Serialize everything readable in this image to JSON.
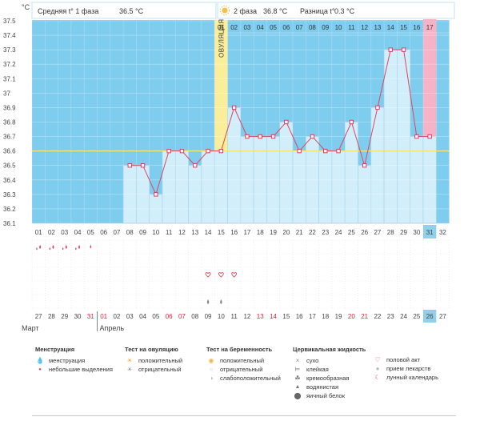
{
  "header": {
    "phase1_label": "Средняя t° 1 фаза",
    "phase1_value": "36.5 °C",
    "phase2_label": "2 фаза",
    "phase2_value": "36.8 °C",
    "diff_label": "Разница t°",
    "diff_value": "0.3 °C"
  },
  "colors": {
    "sky": "#7fcdee",
    "bar_fill": "#d2eefb",
    "bar_stroke": "#8ec9e6",
    "ovulation": "#fbee9a",
    "today": "#f7b3c5",
    "line": "#e0455e",
    "marker": "#d83d64",
    "coverline": "#f4e66e",
    "today_tile": "#8fd0ec",
    "weekend": "#d8243a"
  },
  "chart_data": {
    "type": "line",
    "title": "Базальная температура",
    "unit_label": "°C",
    "ylim": [
      36.1,
      37.5
    ],
    "y_ticks": [
      "37.5",
      "37.4",
      "37.3",
      "37.2",
      "37.1",
      "37",
      "36.9",
      "36.8",
      "36.7",
      "36.6",
      "36.5",
      "36.4",
      "36.3",
      "36.2",
      "36.1"
    ],
    "cycle_days": [
      "01",
      "02",
      "03",
      "04",
      "05",
      "06",
      "07",
      "08",
      "09",
      "10",
      "11",
      "12",
      "13",
      "14",
      "15",
      "16",
      "17",
      "18",
      "19",
      "20",
      "21",
      "22",
      "23",
      "24",
      "25",
      "26",
      "27",
      "28",
      "29",
      "30",
      "31",
      "32"
    ],
    "top_days": [
      "01",
      "02",
      "03",
      "04",
      "05",
      "06",
      "07",
      "08",
      "09",
      "10",
      "11",
      "12",
      "13",
      "14",
      "15",
      "16",
      "17"
    ],
    "temperatures": [
      null,
      null,
      null,
      null,
      null,
      null,
      null,
      36.5,
      36.5,
      36.3,
      36.6,
      36.6,
      36.5,
      36.6,
      36.6,
      36.9,
      36.7,
      36.7,
      36.7,
      36.8,
      36.6,
      36.7,
      36.6,
      36.6,
      36.8,
      36.5,
      36.9,
      37.3,
      37.3,
      36.7,
      36.7,
      null
    ],
    "coverline": 36.6,
    "ovulation_day": 15,
    "ovulation_label": "ОВУЛЯЦИЯ",
    "today_day": 31,
    "menstruation": [
      {
        "day": 1,
        "type": "full"
      },
      {
        "day": 2,
        "type": "full"
      },
      {
        "day": 3,
        "type": "full"
      },
      {
        "day": 4,
        "type": "full"
      },
      {
        "day": 5,
        "type": "light"
      }
    ],
    "intercourse_days": [
      14,
      15,
      16
    ],
    "cervical_days": [
      14,
      15
    ],
    "dates": [
      "27",
      "28",
      "29",
      "30",
      "31",
      "01",
      "02",
      "03",
      "04",
      "05",
      "06",
      "07",
      "08",
      "09",
      "10",
      "11",
      "12",
      "13",
      "14",
      "15",
      "16",
      "17",
      "18",
      "19",
      "20",
      "21",
      "22",
      "23",
      "24",
      "25",
      "26",
      "27"
    ],
    "weekend_indices": [
      4,
      5,
      10,
      11,
      17,
      18,
      24,
      25
    ],
    "months": [
      {
        "name": "Март",
        "start_index": 0
      },
      {
        "name": "Апрель",
        "start_index": 5
      }
    ]
  },
  "legend": {
    "menstruation": {
      "title": "Менструация",
      "items": [
        {
          "icon": "blood-drops-icon",
          "label": "менструация"
        },
        {
          "icon": "blood-drop-small-icon",
          "label": "небольшие выделения"
        }
      ]
    },
    "ovulation_test": {
      "title": "Тест на овуляцию",
      "items": [
        {
          "icon": "sun-positive-icon",
          "label": "положительный"
        },
        {
          "icon": "sun-negative-icon",
          "label": "отрицательный"
        }
      ]
    },
    "pregnancy_test": {
      "title": "Тест на беременность",
      "items": [
        {
          "icon": "test-positive-icon",
          "label": "положительный"
        },
        {
          "icon": "test-negative-icon",
          "label": "отрицательный"
        },
        {
          "icon": "test-weak-icon",
          "label": "слабоположительный"
        }
      ]
    },
    "cervical_fluid": {
      "title": "Цервикальная жидкость",
      "items": [
        {
          "icon": "dry-icon",
          "label": "сухо"
        },
        {
          "icon": "sticky-icon",
          "label": "клейкая"
        },
        {
          "icon": "creamy-icon",
          "label": "кремообразная"
        },
        {
          "icon": "watery-icon",
          "label": "водянистая"
        },
        {
          "icon": "egg-white-icon",
          "label": "яичный белок"
        }
      ]
    },
    "other": {
      "items": [
        {
          "icon": "heart-icon",
          "label": "половой акт"
        },
        {
          "icon": "pill-icon",
          "label": "прием лекарств"
        },
        {
          "icon": "moon-icon",
          "label": "лунный календарь"
        }
      ]
    }
  }
}
